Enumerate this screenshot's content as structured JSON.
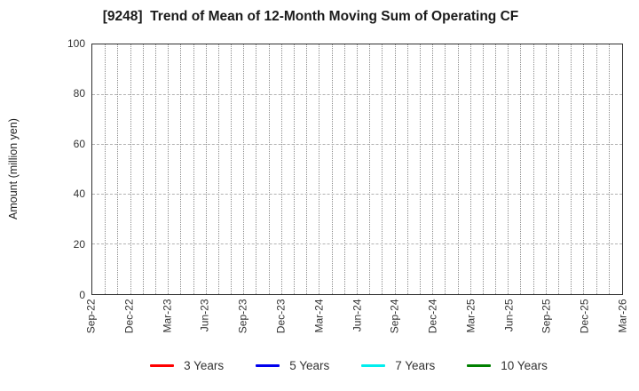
{
  "chart": {
    "title": "[9248]  Trend of Mean of 12-Month Moving Sum of Operating CF",
    "ylabel": "Amount (million yen)"
  },
  "chart_data": {
    "type": "line",
    "title": "[9248]  Trend of Mean of 12-Month Moving Sum of Operating CF",
    "xlabel": "",
    "ylabel": "Amount (million yen)",
    "ylim": [
      0,
      100
    ],
    "yticks": [
      0,
      20,
      40,
      60,
      80,
      100
    ],
    "xticklabels": [
      "Sep-22",
      "Dec-22",
      "Mar-23",
      "Jun-23",
      "Sep-23",
      "Dec-23",
      "Mar-24",
      "Jun-24",
      "Sep-24",
      "Dec-24",
      "Mar-25",
      "Jun-25",
      "Sep-25",
      "Dec-25",
      "Mar-26"
    ],
    "x_total_intervals": 42,
    "grid": true,
    "legend_position": "bottom",
    "series": [
      {
        "name": "3 Years",
        "color": "#ff0000",
        "values": []
      },
      {
        "name": "5 Years",
        "color": "#0000ee",
        "values": []
      },
      {
        "name": "7 Years",
        "color": "#00eeee",
        "values": []
      },
      {
        "name": "10 Years",
        "color": "#008000",
        "values": []
      }
    ],
    "note": "no data points plotted; plot area is empty"
  }
}
